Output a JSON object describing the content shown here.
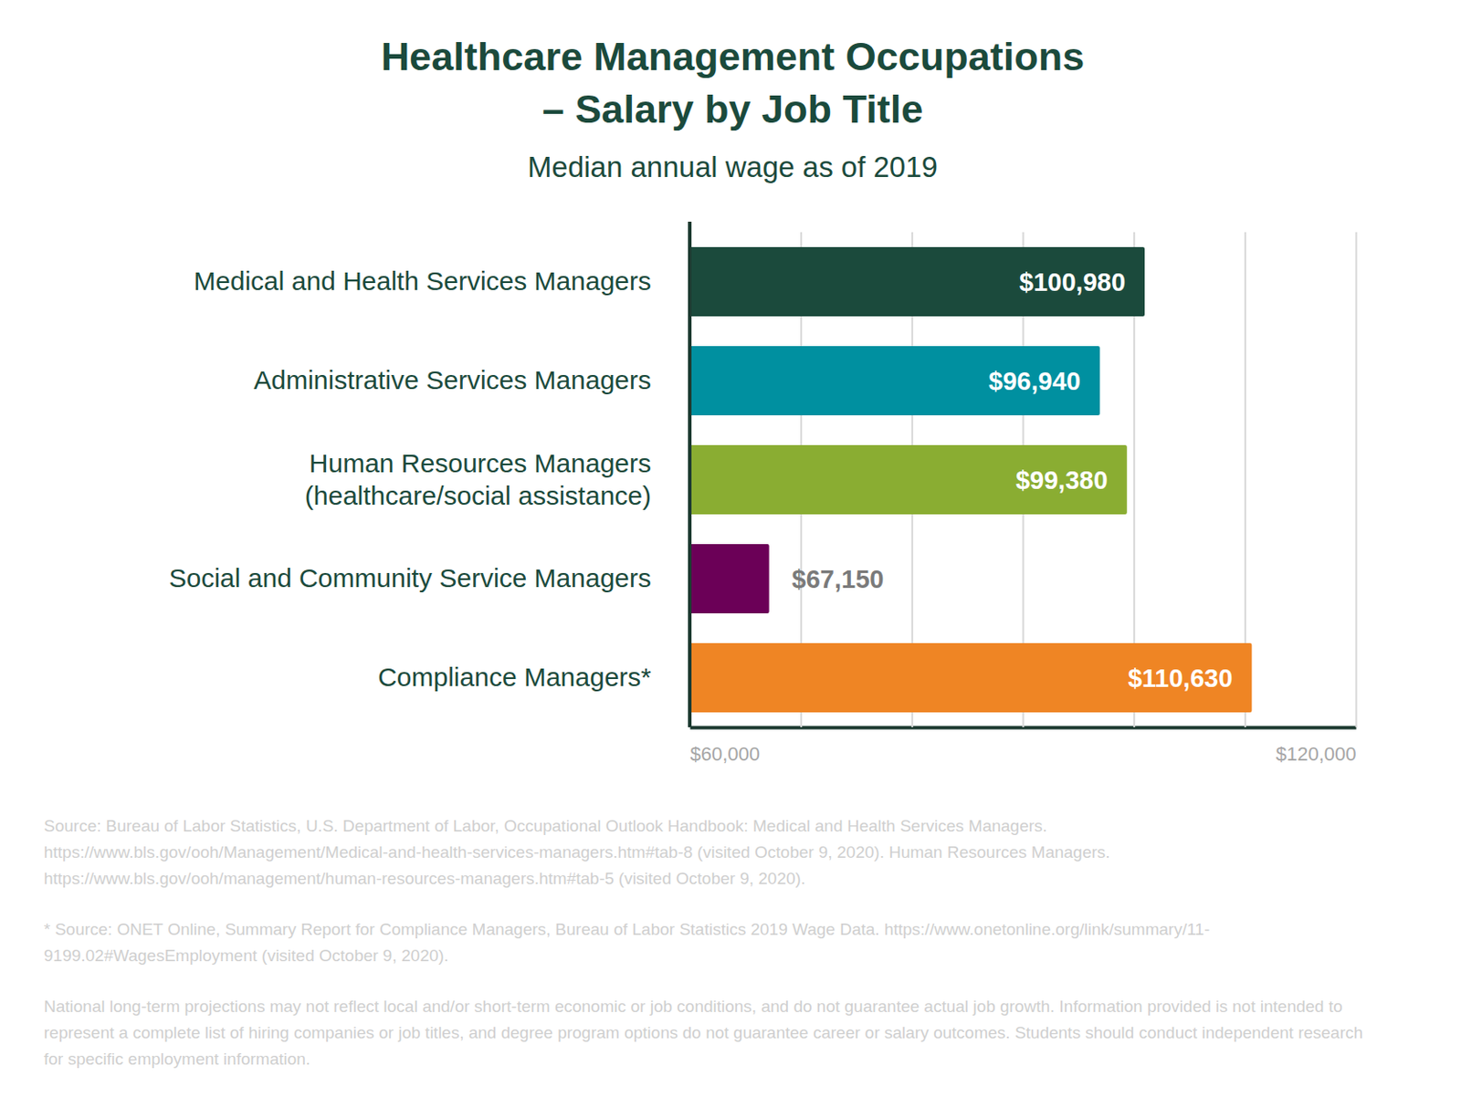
{
  "chart_data": {
    "type": "bar",
    "orientation": "horizontal",
    "title": "Healthcare Management Occupations – Salary by Job Title",
    "subtitle": "Median annual wage as of 2019",
    "categories": [
      "Medical and Health Services Managers",
      "Administrative Services Managers",
      "Human Resources Managers (healthcare/social assistance)",
      "Social and Community Service Managers",
      "Compliance Managers*"
    ],
    "values": [
      100980,
      96940,
      99380,
      67150,
      110630
    ],
    "value_labels": [
      "$100,980",
      "$96,940",
      "$99,380",
      "$67,150",
      "$110,630"
    ],
    "colors": [
      "#1b4a3c",
      "#0090a0",
      "#8aad32",
      "#6b0057",
      "#ef8524"
    ],
    "xlim": [
      60000,
      120000
    ],
    "xticks": [
      {
        "value": 60000,
        "label": "$60,000"
      },
      {
        "value": 70000,
        "label": null
      },
      {
        "value": 80000,
        "label": null
      },
      {
        "value": 90000,
        "label": null
      },
      {
        "value": 100000,
        "label": null
      },
      {
        "value": 110000,
        "label": null
      },
      {
        "value": 120000,
        "label": "$120,000"
      }
    ],
    "grid": true,
    "data_labels": true,
    "annotations": [
      "Source: Bureau of Labor Statistics, U.S. Department of Labor, Occupational Outlook Handbook: Medical and Health Services Managers. https://www.bls.gov/ooh/Management/Medical-and-health-services-managers.htm#tab-8 (visited October 9, 2020). Human Resources Managers. https://www.bls.gov/ooh/management/human-resources-managers.htm#tab-5 (visited October 9, 2020).",
      "* Source: ONET Online, Summary Report for Compliance Managers, Bureau of Labor Statistics 2019 Wage Data. https://www.onetonline.org/link/summary/11-9199.02#WagesEmployment (visited October 9, 2020).",
      "National long-term projections may not reflect local and/or short-term economic or job conditions, and do not guarantee actual job growth. Information provided is not intended to represent a complete list of hiring companies or job titles, and degree program options do not guarantee career or salary outcomes. Students should conduct independent research for specific employment information."
    ]
  }
}
